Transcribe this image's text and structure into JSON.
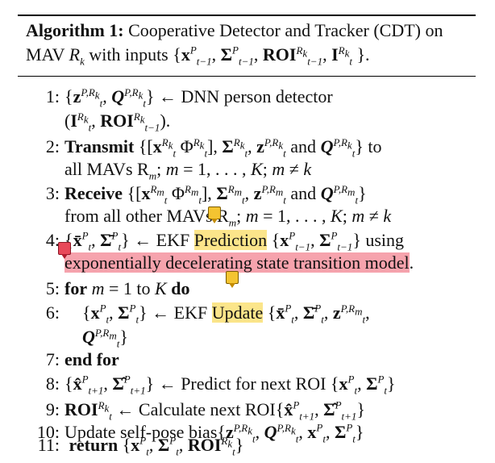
{
  "header": {
    "label": "Algorithm 1:",
    "line1": "Cooperative Detector and Tracker (CDT) on",
    "line2": "MAV R_k with inputs {x^P_{t−1}, Σ^P_{t−1}, ROI^{R_k}_{t−1}, I^{R_k}_t }."
  },
  "lines": [
    {
      "num": "1:",
      "text": "{z^{P,R_k}_t, Q^{P,R_k}_t} ← DNN person detector",
      "cont": "(I^{R_k}_t, ROI^{R_k}_{t−1})."
    },
    {
      "num": "2:",
      "kw": "Transmit",
      "text": "{[x^{R_k}_t Φ^{R_k}_t], Σ^{R_k}_t, z^{P,R_k}_t and Q^{P,R_k}_t} to",
      "cont": "all MAVs R_m; m = 1, . . . , K; m ≠ k"
    },
    {
      "num": "3:",
      "kw": "Receive",
      "text": "{[x^{R_m}_t Φ^{R_m}_t], Σ^{R_m}_t, z^{P,R_m}_t and Q^{P,R_m}_t}",
      "cont": "from all other MAVs R_m; m = 1, . . . , K; m ≠ k"
    },
    {
      "num": "4:",
      "text": "{x̄^P_t, Σ̄^P_t} ← EKF",
      "hl": "Prediction",
      "text2": "{x^P_{t−1}, Σ^P_{t−1}} using",
      "cont": "exponentially decelerating state transition model."
    },
    {
      "num": "5:",
      "kw": "for",
      "text": "m = 1 to K",
      "kw2": "do"
    },
    {
      "num": "6:",
      "text": "{x^P_t, Σ^P_t} ← EKF",
      "hl": "Update",
      "text2": "{x̄^P_t, Σ̄^P_t, z^{P,R_m}_t,",
      "cont": "Q^{P,R_m}_t}"
    },
    {
      "num": "7:",
      "kw": "end for"
    },
    {
      "num": "8:",
      "text": "{x̂^P_{t+1}, Σ̂^P_{t+1}} ← Predict for next ROI {x^P_t, Σ^P_t}"
    },
    {
      "num": "9:",
      "kw": "ROI^{R_k}_t",
      "text": "← Calculate next ROI{x̂^P_{t+1}, Σ̂^P_{t+1}}"
    },
    {
      "num": "10:",
      "text": "Update self-pose bias{z^{P,R_k}_t, Q^{P,R_k}_t, x^P_t, Σ^P_t}"
    },
    {
      "num": "11:",
      "kw": "return",
      "text": "{x^P_t, Σ^P_t, ROI^{R_k}_t}"
    }
  ],
  "colors": {
    "highlight_yellow": "#fbe58a",
    "highlight_red": "#f6a3ad",
    "note_yellow": "#f4c431",
    "note_red": "#e8495a"
  },
  "icons": [
    "comment-note-icon"
  ]
}
